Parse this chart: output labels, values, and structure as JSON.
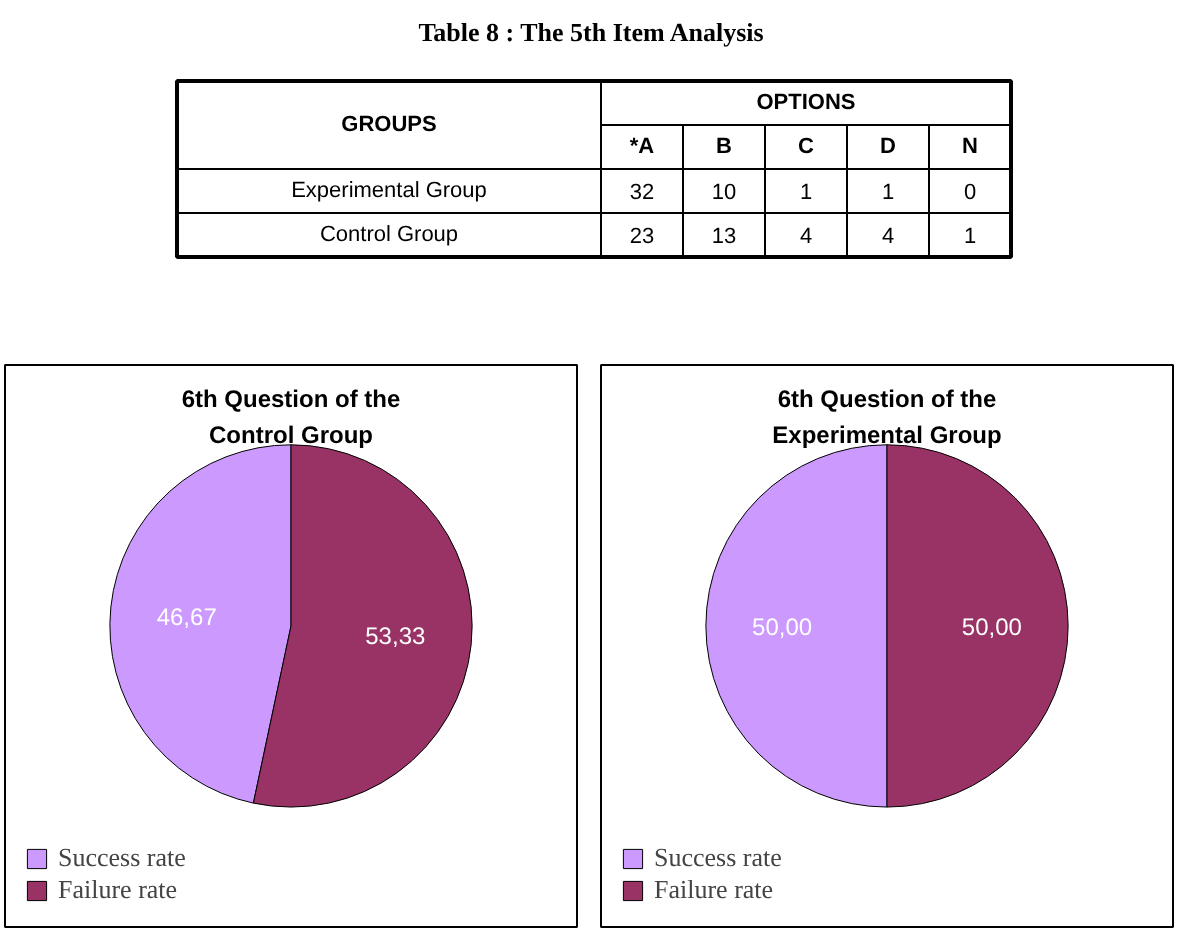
{
  "chart_data": [
    {
      "type": "other",
      "data_labels": true,
      "title": "Table 8 : The 5th Item Analysis",
      "ylabel": "GROUPS",
      "xlabel": "OPTIONS",
      "categories": [
        "*A",
        "B",
        "C",
        "D",
        "N"
      ],
      "series": [
        {
          "name": "Experimental Group",
          "values": [
            32,
            10,
            1,
            1,
            0
          ]
        },
        {
          "name": "Control Group",
          "values": [
            23,
            13,
            4,
            4,
            1
          ]
        }
      ]
    },
    {
      "type": "pie",
      "title": "6th Question of the Control Group",
      "categories": [
        "Success rate",
        "Failure rate"
      ],
      "values": [
        46.67,
        53.33
      ],
      "colors": [
        "#cc99ff",
        "#993366"
      ],
      "value_labels": [
        "46,67",
        "53,33"
      ],
      "legend": "bottom"
    },
    {
      "type": "pie",
      "title": "6th Question of the Experimental Group",
      "categories": [
        "Success rate",
        "Failure rate"
      ],
      "values": [
        50.0,
        50.0
      ],
      "colors": [
        "#cc99ff",
        "#993366"
      ],
      "value_labels": [
        "50,00",
        "50,00"
      ],
      "legend": "bottom"
    }
  ]
}
